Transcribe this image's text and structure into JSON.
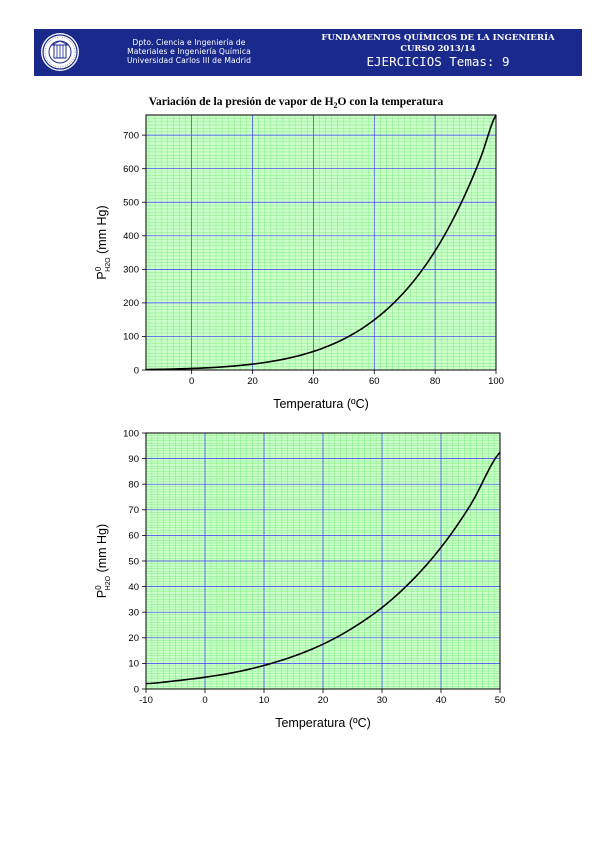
{
  "header": {
    "dept_line1": "Dpto. Ciencia e Ingeniería de",
    "dept_line2": "Materiales e Ingeniería Química",
    "dept_line3": "Universidad Carlos III de Madrid",
    "course_title": "FUNDAMENTOS QUÍMICOS DE LA INGENIERÍA",
    "course_year": "CURSO 2013/14",
    "exercises": "EJERCICIOS Temas: 9",
    "colors": {
      "background": "#1a2a8c",
      "text": "#ffffff"
    },
    "logo_icon": "university-seal-icon"
  },
  "chart_data": [
    {
      "type": "line",
      "title": "Variación de la presión de vapor de H2O con la temperatura",
      "xlabel": "Temperatura (ºC)",
      "ylabel": "P0 H2O (mm Hg)",
      "xlim": [
        -15,
        100
      ],
      "ylim": [
        0,
        760
      ],
      "xticks": [
        0,
        20,
        40,
        60,
        80,
        100
      ],
      "yticks": [
        0,
        100,
        200,
        300,
        400,
        500,
        600,
        700
      ],
      "grid": true,
      "grid_colors": {
        "major": "#3c3cff",
        "minor": "#6fe86f",
        "background": "#ccffcc"
      },
      "series": [
        {
          "x": [
            -15,
            -10,
            -5,
            0,
            5,
            10,
            15,
            20,
            25,
            30,
            35,
            40,
            45,
            50,
            55,
            60,
            65,
            70,
            75,
            80,
            85,
            90,
            95,
            100
          ],
          "y": [
            1.4,
            2.1,
            3.2,
            4.6,
            6.5,
            9.2,
            12.8,
            17.5,
            23.8,
            31.8,
            42.2,
            55.3,
            71.9,
            92.5,
            118.0,
            149.4,
            187.5,
            233.7,
            289.1,
            355.1,
            433.6,
            525.8,
            633.9,
            760.0
          ],
          "color": "#000000"
        }
      ]
    },
    {
      "type": "line",
      "title": "",
      "xlabel": "Temperatura (ºC)",
      "ylabel": "P0 H2O (mm Hg)",
      "xlim": [
        -10,
        50
      ],
      "ylim": [
        0,
        100
      ],
      "xticks": [
        -10,
        0,
        10,
        20,
        30,
        40,
        50
      ],
      "yticks": [
        0,
        10,
        20,
        30,
        40,
        50,
        60,
        70,
        80,
        90,
        100
      ],
      "grid": true,
      "grid_colors": {
        "major": "#3c3cff",
        "minor": "#6fe86f",
        "background": "#ccffcc"
      },
      "series": [
        {
          "x": [
            -10,
            -5,
            0,
            5,
            10,
            15,
            20,
            25,
            30,
            35,
            40,
            45,
            50
          ],
          "y": [
            2.1,
            3.2,
            4.6,
            6.5,
            9.2,
            12.8,
            17.5,
            23.8,
            31.8,
            42.2,
            55.3,
            71.9,
            92.5
          ],
          "color": "#000000"
        }
      ]
    }
  ]
}
